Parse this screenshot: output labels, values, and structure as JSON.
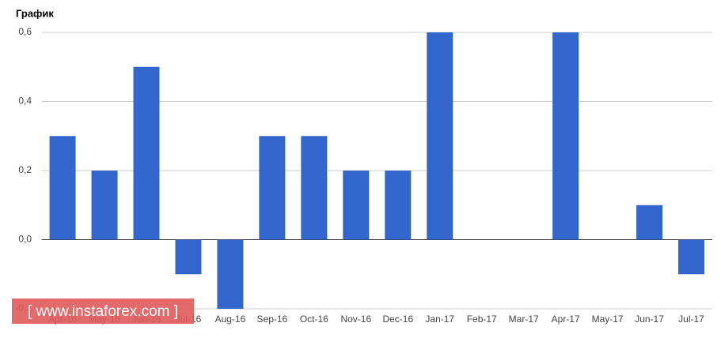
{
  "chart_data": {
    "type": "bar",
    "title": "График",
    "categories": [
      "Apr-16",
      "May-16",
      "Jun-16",
      "Jul-16",
      "Aug-16",
      "Sep-16",
      "Oct-16",
      "Nov-16",
      "Dec-16",
      "Jan-17",
      "Feb-17",
      "Mar-17",
      "Apr-17",
      "May-17",
      "Jun-17",
      "Jul-17"
    ],
    "values": [
      0.3,
      0.2,
      0.5,
      -0.1,
      -0.2,
      0.3,
      0.3,
      0.2,
      0.2,
      0.6,
      0,
      0,
      0.6,
      0,
      0.1,
      -0.1
    ],
    "color": "#3366cc",
    "ylim": [
      -0.2,
      0.6
    ],
    "yticks": [
      {
        "value": -0.2,
        "label": "-0,2"
      },
      {
        "value": 0,
        "label": "0,0"
      },
      {
        "value": 0.2,
        "label": "0,2"
      },
      {
        "value": 0.4,
        "label": "0,4"
      },
      {
        "value": 0.6,
        "label": "0,6"
      }
    ],
    "grid": true
  },
  "watermark": "[ www.instaforex.com ]"
}
